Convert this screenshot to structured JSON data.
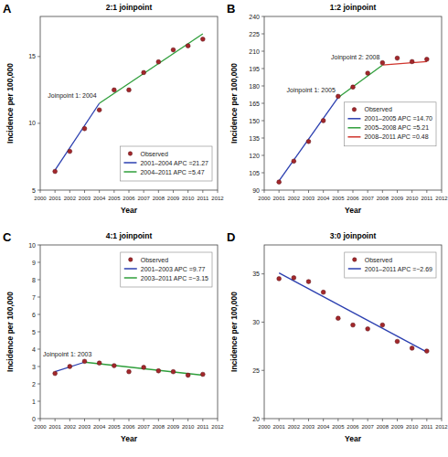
{
  "chart_data": [
    {
      "type": "line",
      "panel_label": "A",
      "title": "2:1 joinpoint",
      "x_label": "Year",
      "y_label": "Incidence per 100,000",
      "xlim": [
        2000,
        2012
      ],
      "xticks": [
        2000,
        2001,
        2002,
        2003,
        2004,
        2005,
        2006,
        2007,
        2008,
        2009,
        2010,
        2011,
        2012
      ],
      "ylim": [
        5,
        18
      ],
      "yticks": [
        5,
        10,
        15
      ],
      "grid": false,
      "legend": "lower right",
      "series": [
        {
          "name": "Observed",
          "type": "scatter",
          "marker": "circle",
          "color": "#a3272b",
          "x": [
            2001,
            2002,
            2003,
            2004,
            2005,
            2006,
            2007,
            2008,
            2009,
            2010,
            2011
          ],
          "values": [
            6.4,
            7.9,
            9.6,
            11.0,
            12.5,
            12.5,
            13.8,
            14.6,
            15.5,
            15.8,
            16.3
          ]
        },
        {
          "name": "2001–2004 APC =21.27",
          "type": "line",
          "line_style": "solid",
          "color": "#2b3fb0",
          "x": [
            2001,
            2004
          ],
          "values": [
            6.5,
            11.5
          ]
        },
        {
          "name": "2004–2011 APC =5.47",
          "type": "line",
          "line_style": "solid",
          "color": "#2e9e3a",
          "x": [
            2004,
            2011
          ],
          "values": [
            11.5,
            16.7
          ]
        }
      ],
      "annotations": [
        {
          "text": "Joinpoint 1: 2004",
          "x": 2004,
          "y": 11.5
        }
      ]
    },
    {
      "type": "line",
      "panel_label": "B",
      "title": "1:2 joinpoint",
      "x_label": "Year",
      "y_label": "Incidence per 100,000",
      "xlim": [
        2000,
        2012
      ],
      "xticks": [
        2000,
        2001,
        2002,
        2003,
        2004,
        2005,
        2006,
        2007,
        2008,
        2009,
        2010,
        2011,
        2012
      ],
      "ylim": [
        90,
        240
      ],
      "yticks": [
        90,
        105,
        120,
        135,
        150,
        165,
        180,
        195,
        210,
        225,
        240
      ],
      "grid": false,
      "legend": "right",
      "series": [
        {
          "name": "Observed",
          "type": "scatter",
          "marker": "circle",
          "color": "#a3272b",
          "x": [
            2001,
            2002,
            2003,
            2004,
            2005,
            2006,
            2007,
            2008,
            2009,
            2010,
            2011
          ],
          "values": [
            97,
            115,
            132,
            150,
            171,
            179,
            191,
            200,
            204,
            201,
            203
          ]
        },
        {
          "name": "2001–2005 APC =14.70",
          "type": "line",
          "line_style": "solid",
          "color": "#2b3fb0",
          "x": [
            2001,
            2005
          ],
          "values": [
            98,
            170
          ]
        },
        {
          "name": "2005–2008 APC =5.21",
          "type": "line",
          "line_style": "solid",
          "color": "#2e9e3a",
          "x": [
            2005,
            2008
          ],
          "values": [
            170,
            198
          ]
        },
        {
          "name": "2008–2011 APC =0.48",
          "type": "line",
          "line_style": "solid",
          "color": "#d0342c",
          "x": [
            2008,
            2011
          ],
          "values": [
            198,
            201
          ]
        }
      ],
      "annotations": [
        {
          "text": "Joinpoint 1: 2005",
          "x": 2005,
          "y": 170
        },
        {
          "text": "Joinpoint 2: 2008",
          "x": 2008,
          "y": 198
        }
      ]
    },
    {
      "type": "line",
      "panel_label": "C",
      "title": "4:1 joinpoint",
      "x_label": "Year",
      "y_label": "Incidence per 100,000",
      "xlim": [
        2000,
        2012
      ],
      "xticks": [
        2000,
        2001,
        2002,
        2003,
        2004,
        2005,
        2006,
        2007,
        2008,
        2009,
        2010,
        2011,
        2012
      ],
      "ylim": [
        0,
        10
      ],
      "yticks": [
        0,
        1,
        2,
        3,
        4,
        5,
        6,
        7,
        8,
        9,
        10
      ],
      "grid": false,
      "legend": "upper right",
      "series": [
        {
          "name": "Observed",
          "type": "scatter",
          "marker": "circle",
          "color": "#a3272b",
          "x": [
            2001,
            2002,
            2003,
            2004,
            2005,
            2006,
            2007,
            2008,
            2009,
            2010,
            2011
          ],
          "values": [
            2.6,
            3.0,
            3.3,
            3.2,
            3.05,
            2.7,
            2.95,
            2.75,
            2.7,
            2.5,
            2.55
          ]
        },
        {
          "name": "2001–2003 APC =9.77",
          "type": "line",
          "line_style": "solid",
          "color": "#2b3fb0",
          "x": [
            2001,
            2003
          ],
          "values": [
            2.7,
            3.25
          ]
        },
        {
          "name": "2003–2011 APC =−3.15",
          "type": "line",
          "line_style": "solid",
          "color": "#2e9e3a",
          "x": [
            2003,
            2011
          ],
          "values": [
            3.25,
            2.5
          ]
        }
      ],
      "annotations": [
        {
          "text": "Joinpoint 1: 2003",
          "x": 2003,
          "y": 3.25
        }
      ]
    },
    {
      "type": "line",
      "panel_label": "D",
      "title": "3:0 joinpoint",
      "x_label": "Year",
      "y_label": "Incidence per 100,000",
      "xlim": [
        2000,
        2012
      ],
      "xticks": [
        2000,
        2001,
        2002,
        2003,
        2004,
        2005,
        2006,
        2007,
        2008,
        2009,
        2010,
        2011,
        2012
      ],
      "ylim": [
        20,
        38
      ],
      "yticks": [
        20,
        25,
        30,
        35
      ],
      "grid": false,
      "legend": "upper right",
      "series": [
        {
          "name": "Observed",
          "type": "scatter",
          "marker": "circle",
          "color": "#a3272b",
          "x": [
            2001,
            2002,
            2003,
            2004,
            2005,
            2006,
            2007,
            2008,
            2009,
            2010,
            2011
          ],
          "values": [
            34.5,
            34.6,
            34.2,
            33.1,
            30.4,
            29.7,
            29.3,
            29.7,
            28.0,
            27.3,
            27.0
          ]
        },
        {
          "name": "2001–2011 APC =−2.69",
          "type": "line",
          "line_style": "solid",
          "color": "#2b3fb0",
          "x": [
            2001,
            2011
          ],
          "values": [
            35.1,
            26.9
          ]
        }
      ]
    }
  ]
}
